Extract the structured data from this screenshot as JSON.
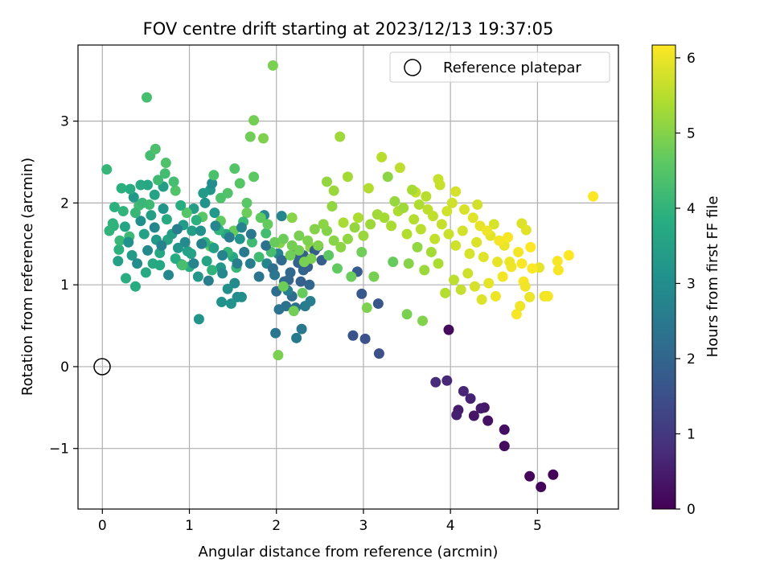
{
  "chart_data": {
    "type": "scatter",
    "title": "FOV centre drift starting at 2023/12/13 19:37:05",
    "xlabel": "Angular distance from reference (arcmin)",
    "ylabel": "Rotation from reference (arcmin)",
    "xlim": [
      -0.28,
      5.93
    ],
    "ylim": [
      -1.74,
      3.93
    ],
    "xticks": [
      0,
      1,
      2,
      3,
      4,
      5
    ],
    "yticks": [
      -1,
      0,
      1,
      2,
      3
    ],
    "xtick_labels": [
      "0",
      "1",
      "2",
      "3",
      "4",
      "5"
    ],
    "ytick_labels": [
      "−1",
      "0",
      "1",
      "2",
      "3"
    ],
    "grid": true,
    "legend": {
      "placement": "top-right",
      "entries": [
        "Reference platepar"
      ]
    },
    "reference_point": {
      "x": 0,
      "y": 0
    },
    "colorbar": {
      "label": "Hours from first FF file",
      "range": [
        0,
        6.17
      ],
      "ticks": [
        0,
        1,
        2,
        3,
        4,
        5,
        6
      ],
      "tick_labels": [
        "0",
        "1",
        "2",
        "3",
        "4",
        "5",
        "6"
      ],
      "colormap": "viridis"
    },
    "points": [
      [
        5.18,
        -1.32,
        0.05
      ],
      [
        5.04,
        -1.47,
        0.08
      ],
      [
        4.91,
        -1.34,
        0.1
      ],
      [
        3.98,
        0.45,
        0.15
      ],
      [
        4.62,
        -0.97,
        0.2
      ],
      [
        4.62,
        -0.77,
        0.25
      ],
      [
        4.43,
        -0.66,
        0.3
      ],
      [
        4.27,
        -0.6,
        0.35
      ],
      [
        4.39,
        -0.5,
        0.4
      ],
      [
        4.35,
        -0.51,
        0.45
      ],
      [
        4.09,
        -0.53,
        0.5
      ],
      [
        4.07,
        -0.59,
        0.55
      ],
      [
        4.23,
        -0.39,
        0.6
      ],
      [
        4.15,
        -0.3,
        0.65
      ],
      [
        3.96,
        -0.17,
        0.7
      ],
      [
        3.83,
        -0.19,
        0.75
      ],
      [
        3.18,
        0.16,
        1.5
      ],
      [
        3.02,
        0.34,
        1.55
      ],
      [
        2.88,
        0.38,
        1.6
      ],
      [
        3.17,
        0.77,
        1.65
      ],
      [
        2.98,
        0.89,
        1.7
      ],
      [
        2.93,
        1.16,
        1.75
      ],
      [
        2.52,
        1.3,
        1.8
      ],
      [
        2.48,
        1.47,
        1.85
      ],
      [
        2.31,
        1.36,
        1.9
      ],
      [
        2.25,
        1.27,
        1.95
      ],
      [
        2.31,
        1.18,
        2.0
      ],
      [
        2.38,
        1.0,
        2.05
      ],
      [
        2.16,
        1.15,
        2.1
      ],
      [
        2.09,
        1.04,
        2.15
      ],
      [
        2.18,
        0.86,
        2.2
      ],
      [
        2.22,
        0.72,
        2.25
      ],
      [
        2.11,
        0.74,
        2.3
      ],
      [
        2.03,
        0.7,
        2.35
      ],
      [
        1.99,
        0.41,
        2.4
      ],
      [
        2.29,
        0.46,
        2.45
      ],
      [
        2.23,
        0.35,
        2.5
      ],
      [
        2.33,
        0.74,
        2.55
      ],
      [
        2.39,
        0.8,
        2.6
      ],
      [
        2.13,
        0.93,
        2.65
      ],
      [
        2.02,
        1.38,
        2.7
      ],
      [
        1.89,
        1.26,
        2.75
      ],
      [
        2.06,
        1.84,
        2.8
      ],
      [
        1.86,
        1.85,
        2.85
      ],
      [
        1.52,
        1.02,
        2.9
      ],
      [
        1.55,
        0.85,
        2.95
      ],
      [
        1.6,
        0.85,
        3.0
      ],
      [
        1.44,
        0.95,
        3.05
      ],
      [
        1.48,
        0.77,
        3.1
      ],
      [
        1.37,
        0.79,
        3.15
      ],
      [
        1.11,
        0.58,
        3.2
      ],
      [
        1.24,
        2.16,
        3.25
      ],
      [
        1.29,
        1.88,
        3.3
      ],
      [
        1.16,
        2.12,
        3.35
      ],
      [
        1.05,
        1.93,
        3.4
      ],
      [
        1.03,
        1.66,
        3.45
      ],
      [
        0.98,
        1.41,
        3.5
      ],
      [
        0.91,
        1.25,
        3.55
      ],
      [
        0.75,
        1.55,
        3.6
      ],
      [
        0.66,
        1.39,
        3.65
      ],
      [
        0.58,
        1.26,
        3.7
      ],
      [
        0.5,
        1.15,
        3.75
      ],
      [
        0.38,
        0.98,
        3.8
      ],
      [
        0.27,
        1.08,
        3.85
      ],
      [
        0.19,
        1.43,
        3.9
      ],
      [
        0.13,
        1.72,
        3.95
      ],
      [
        0.08,
        1.66,
        4.0
      ],
      [
        0.05,
        2.41,
        4.05
      ],
      [
        0.2,
        1.54,
        4.1
      ],
      [
        0.31,
        1.59,
        4.15
      ],
      [
        0.42,
        1.97,
        4.2
      ],
      [
        0.55,
        2.58,
        4.25
      ],
      [
        0.51,
        3.29,
        4.3
      ],
      [
        0.61,
        2.66,
        4.35
      ],
      [
        0.73,
        2.49,
        4.4
      ],
      [
        0.84,
        2.15,
        4.45
      ],
      [
        0.97,
        1.88,
        4.5
      ],
      [
        1.15,
        1.83,
        4.55
      ],
      [
        1.24,
        1.47,
        4.6
      ],
      [
        1.36,
        1.78,
        4.65
      ],
      [
        1.51,
        1.66,
        4.7
      ],
      [
        1.66,
        1.88,
        4.75
      ],
      [
        1.7,
        2.81,
        4.8
      ],
      [
        1.74,
        3.01,
        4.85
      ],
      [
        1.96,
        3.68,
        4.9
      ],
      [
        1.85,
        2.79,
        4.95
      ],
      [
        2.04,
        1.51,
        5.0
      ],
      [
        2.18,
        1.82,
        5.05
      ],
      [
        2.39,
        1.46,
        5.1
      ],
      [
        2.58,
        2.26,
        5.15
      ],
      [
        2.66,
        2.15,
        5.2
      ],
      [
        2.73,
        2.81,
        5.25
      ],
      [
        2.82,
        2.32,
        5.3
      ],
      [
        2.77,
        1.76,
        5.35
      ],
      [
        2.94,
        1.82,
        5.4
      ],
      [
        3.06,
        2.18,
        5.45
      ],
      [
        3.21,
        2.56,
        5.5
      ],
      [
        3.42,
        2.43,
        5.55
      ],
      [
        3.6,
        2.13,
        5.6
      ],
      [
        3.86,
        2.29,
        5.65
      ],
      [
        4.02,
        2.0,
        5.7
      ],
      [
        4.31,
        1.98,
        5.75
      ],
      [
        4.5,
        1.74,
        5.8
      ],
      [
        4.82,
        1.75,
        5.85
      ],
      [
        4.87,
        1.67,
        5.9
      ],
      [
        5.02,
        1.21,
        5.95
      ],
      [
        4.91,
        0.85,
        6.0
      ],
      [
        5.08,
        0.86,
        6.05
      ],
      [
        5.23,
        1.29,
        6.1
      ],
      [
        5.64,
        2.08,
        6.15
      ],
      [
        0.3,
        1.52,
        3.12
      ],
      [
        0.36,
        2.07,
        3.28
      ],
      [
        0.44,
        1.78,
        3.06
      ],
      [
        0.62,
        1.55,
        3.32
      ],
      [
        0.7,
        1.93,
        3.18
      ],
      [
        0.8,
        1.62,
        3.44
      ],
      [
        0.87,
        1.45,
        3.22
      ],
      [
        0.93,
        1.73,
        3.36
      ],
      [
        1.02,
        1.38,
        3.52
      ],
      [
        1.13,
        1.66,
        3.08
      ],
      [
        1.2,
        1.29,
        3.58
      ],
      [
        1.28,
        1.45,
        3.42
      ],
      [
        1.36,
        1.21,
        3.26
      ],
      [
        1.42,
        1.62,
        3.64
      ],
      [
        1.5,
        1.34,
        3.7
      ],
      [
        1.58,
        1.56,
        3.16
      ],
      [
        0.18,
        1.29,
        3.48
      ],
      [
        0.26,
        1.71,
        3.62
      ],
      [
        0.34,
        1.36,
        3.34
      ],
      [
        0.48,
        1.62,
        3.54
      ],
      [
        0.56,
        1.85,
        3.46
      ],
      [
        0.66,
        1.24,
        3.66
      ],
      [
        0.74,
        1.8,
        3.72
      ],
      [
        0.84,
        1.32,
        3.78
      ],
      [
        0.9,
        1.97,
        3.82
      ],
      [
        1.0,
        1.22,
        3.86
      ],
      [
        1.08,
        1.79,
        3.9
      ],
      [
        1.18,
        1.52,
        3.94
      ],
      [
        1.26,
        1.18,
        3.98
      ],
      [
        1.34,
        1.67,
        4.02
      ],
      [
        1.44,
        1.4,
        4.06
      ],
      [
        1.54,
        1.21,
        4.1
      ],
      [
        1.62,
        1.77,
        4.14
      ],
      [
        1.72,
        1.52,
        4.18
      ],
      [
        1.8,
        1.34,
        4.22
      ],
      [
        1.88,
        1.63,
        4.26
      ],
      [
        1.94,
        1.4,
        4.3
      ],
      [
        0.4,
        1.26,
        2.96
      ],
      [
        0.52,
        1.42,
        2.88
      ],
      [
        0.6,
        1.7,
        2.8
      ],
      [
        0.68,
        1.48,
        2.72
      ],
      [
        0.76,
        1.12,
        2.84
      ],
      [
        0.86,
        1.68,
        2.64
      ],
      [
        0.95,
        1.52,
        2.9
      ],
      [
        1.05,
        1.26,
        2.76
      ],
      [
        1.14,
        1.5,
        2.68
      ],
      [
        1.22,
        1.05,
        2.6
      ],
      [
        1.3,
        1.72,
        2.82
      ],
      [
        1.38,
        1.36,
        2.7
      ],
      [
        1.46,
        1.58,
        2.56
      ],
      [
        1.55,
        1.26,
        2.62
      ],
      [
        1.63,
        1.4,
        2.52
      ],
      [
        1.71,
        1.62,
        2.46
      ],
      [
        1.8,
        1.1,
        2.38
      ],
      [
        1.88,
        1.48,
        2.3
      ],
      [
        1.96,
        1.2,
        2.22
      ],
      [
        2.06,
        1.3,
        2.14
      ],
      [
        2.14,
        1.06,
        2.06
      ],
      [
        2.22,
        1.38,
        1.98
      ],
      [
        2.28,
        1.04,
        1.92
      ],
      [
        2.36,
        1.22,
        1.86
      ],
      [
        2.44,
        1.42,
        1.78
      ],
      [
        2.0,
        0.92,
        2.18
      ],
      [
        1.98,
        1.12,
        2.42
      ],
      [
        1.7,
        1.26,
        2.58
      ],
      [
        1.6,
        1.7,
        2.74
      ],
      [
        1.38,
        1.14,
        2.86
      ],
      [
        1.26,
        2.24,
        3.0
      ],
      [
        1.18,
        2.0,
        3.14
      ],
      [
        1.1,
        1.1,
        3.24
      ],
      [
        0.7,
        2.2,
        3.4
      ],
      [
        0.6,
        2.1,
        3.56
      ],
      [
        0.52,
        2.22,
        3.68
      ],
      [
        0.44,
        2.22,
        3.74
      ],
      [
        0.32,
        2.17,
        3.8
      ],
      [
        0.22,
        2.18,
        3.88
      ],
      [
        0.14,
        1.95,
        3.92
      ],
      [
        0.12,
        1.75,
        3.96
      ],
      [
        0.24,
        1.9,
        4.0
      ],
      [
        0.38,
        1.88,
        4.08
      ],
      [
        0.46,
        2.0,
        4.12
      ],
      [
        0.54,
        1.98,
        4.16
      ],
      [
        0.64,
        2.28,
        4.2
      ],
      [
        0.72,
        2.36,
        4.24
      ],
      [
        0.82,
        2.26,
        4.28
      ],
      [
        0.92,
        1.24,
        4.32
      ],
      [
        1.28,
        2.34,
        4.36
      ],
      [
        1.36,
        2.06,
        4.4
      ],
      [
        1.44,
        2.12,
        4.44
      ],
      [
        1.52,
        2.42,
        4.48
      ],
      [
        1.58,
        2.24,
        4.52
      ],
      [
        1.66,
        2.0,
        4.56
      ],
      [
        1.74,
        2.32,
        4.6
      ],
      [
        1.82,
        1.82,
        4.64
      ],
      [
        1.9,
        1.74,
        4.68
      ],
      [
        1.98,
        1.52,
        4.72
      ],
      [
        2.08,
        1.56,
        4.76
      ],
      [
        2.16,
        1.36,
        4.8
      ],
      [
        2.26,
        1.42,
        4.84
      ],
      [
        2.32,
        1.28,
        4.88
      ],
      [
        2.4,
        1.32,
        4.92
      ],
      [
        2.48,
        1.48,
        4.96
      ],
      [
        2.58,
        1.66,
        5.0
      ],
      [
        2.66,
        1.54,
        5.04
      ],
      [
        2.74,
        1.46,
        5.08
      ],
      [
        2.82,
        1.56,
        5.12
      ],
      [
        2.9,
        1.7,
        5.16
      ],
      [
        3.0,
        1.6,
        5.2
      ],
      [
        3.08,
        1.74,
        5.24
      ],
      [
        3.16,
        1.86,
        5.28
      ],
      [
        3.24,
        1.82,
        5.32
      ],
      [
        3.32,
        1.72,
        5.36
      ],
      [
        3.4,
        1.9,
        5.4
      ],
      [
        3.5,
        1.62,
        5.44
      ],
      [
        3.58,
        1.8,
        5.48
      ],
      [
        3.66,
        1.68,
        5.52
      ],
      [
        3.74,
        1.92,
        5.56
      ],
      [
        3.82,
        1.56,
        5.6
      ],
      [
        3.9,
        1.74,
        5.64
      ],
      [
        3.98,
        1.62,
        5.68
      ],
      [
        4.06,
        1.48,
        5.72
      ],
      [
        4.14,
        1.66,
        5.76
      ],
      [
        4.22,
        1.38,
        5.8
      ],
      [
        4.3,
        1.52,
        5.84
      ],
      [
        4.38,
        1.34,
        5.88
      ],
      [
        4.46,
        1.6,
        5.92
      ],
      [
        4.54,
        1.28,
        5.96
      ],
      [
        4.62,
        1.48,
        6.0
      ],
      [
        4.7,
        1.22,
        6.04
      ],
      [
        4.78,
        1.4,
        6.08
      ],
      [
        3.52,
        1.26,
        5.02
      ],
      [
        3.62,
        1.46,
        5.14
      ],
      [
        3.7,
        1.18,
        5.22
      ],
      [
        3.78,
        1.4,
        5.3
      ],
      [
        3.86,
        1.26,
        5.38
      ],
      [
        3.94,
        0.9,
        5.46
      ],
      [
        4.04,
        1.06,
        5.54
      ],
      [
        4.12,
        0.94,
        5.62
      ],
      [
        4.2,
        1.14,
        5.7
      ],
      [
        4.28,
        0.98,
        5.78
      ],
      [
        4.36,
        0.82,
        5.86
      ],
      [
        4.44,
        1.02,
        5.94
      ],
      [
        4.52,
        0.86,
        6.02
      ],
      [
        4.6,
        1.1,
        6.06
      ],
      [
        4.76,
        0.64,
        6.1
      ],
      [
        4.84,
        1.04,
        6.12
      ],
      [
        4.94,
        1.2,
        6.14
      ],
      [
        3.5,
        0.64,
        4.9
      ],
      [
        3.68,
        0.56,
        4.98
      ],
      [
        3.04,
        0.72,
        4.94
      ],
      [
        3.12,
        1.1,
        4.86
      ],
      [
        2.98,
        1.4,
        4.8
      ],
      [
        2.86,
        1.1,
        4.74
      ],
      [
        2.7,
        1.2,
        4.66
      ],
      [
        2.6,
        1.36,
        4.6
      ],
      [
        3.34,
        1.28,
        4.7
      ],
      [
        3.28,
        2.32,
        5.06
      ],
      [
        3.36,
        2.02,
        5.18
      ],
      [
        3.46,
        1.94,
        5.26
      ],
      [
        3.56,
        2.16,
        5.34
      ],
      [
        3.64,
        1.98,
        5.42
      ],
      [
        3.72,
        2.08,
        5.5
      ],
      [
        3.8,
        1.84,
        5.58
      ],
      [
        3.88,
        2.22,
        5.66
      ],
      [
        3.96,
        1.9,
        5.72
      ],
      [
        4.06,
        2.14,
        5.78
      ],
      [
        4.16,
        1.92,
        5.82
      ],
      [
        4.26,
        1.82,
        5.9
      ],
      [
        4.34,
        1.72,
        5.96
      ],
      [
        4.42,
        1.66,
        6.02
      ],
      [
        4.56,
        1.54,
        6.08
      ],
      [
        4.66,
        1.58,
        6.1
      ],
      [
        4.82,
        1.26,
        6.14
      ],
      [
        4.92,
        1.46,
        6.16
      ],
      [
        5.36,
        1.36,
        6.16
      ],
      [
        5.24,
        1.18,
        6.12
      ],
      [
        5.12,
        0.86,
        6.1
      ],
      [
        4.86,
        0.98,
        6.06
      ],
      [
        4.8,
        0.74,
        6.04
      ],
      [
        4.68,
        1.28,
        6.02
      ],
      [
        2.64,
        1.96,
        5.12
      ],
      [
        2.54,
        1.74,
        5.08
      ],
      [
        2.44,
        1.68,
        5.0
      ],
      [
        2.36,
        1.54,
        4.94
      ],
      [
        2.26,
        1.6,
        4.88
      ],
      [
        2.18,
        1.48,
        4.84
      ],
      [
        2.08,
        0.98,
        4.78
      ],
      [
        2.2,
        0.68,
        4.82
      ],
      [
        2.02,
        0.14,
        4.9
      ],
      [
        2.3,
        0.9,
        4.72
      ]
    ]
  }
}
